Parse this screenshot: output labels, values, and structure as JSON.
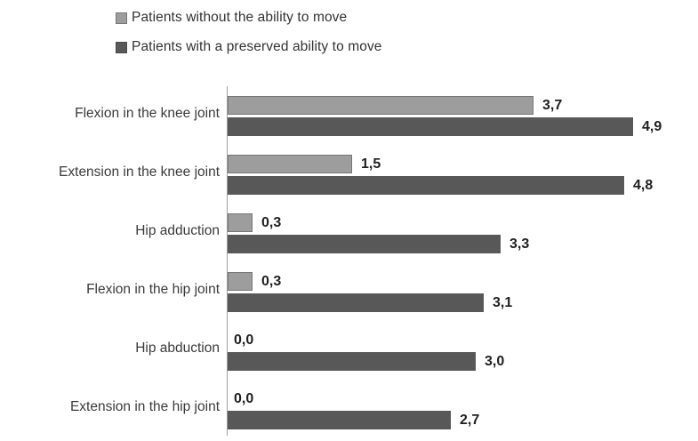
{
  "chart_data": {
    "type": "bar",
    "orientation": "horizontal",
    "title": "",
    "xlabel": "",
    "ylabel": "",
    "xlim": [
      0,
      5.7
    ],
    "grid": false,
    "legend_position": "top",
    "decimal_separator": ",",
    "background_color": "#ffffff",
    "axis_color": "#a0a0a0",
    "categories": [
      "Flexion in the knee joint",
      "Extension in the knee joint",
      "Hip adduction",
      "Flexion in the hip joint",
      "Hip abduction",
      "Extension in the hip joint"
    ],
    "series": [
      {
        "name": "Patients without the ability to move",
        "color": "#9d9d9d",
        "border_color": "#767676",
        "values": [
          3.7,
          1.5,
          0.3,
          0.3,
          0.0,
          0.0
        ],
        "value_labels": [
          "3,7",
          "1,5",
          "0,3",
          "0,3",
          "0,0",
          "0,0"
        ]
      },
      {
        "name": "Patients with a preserved ability to move",
        "color": "#585858",
        "border_color": "#4c4c4c",
        "values": [
          4.9,
          4.8,
          3.3,
          3.1,
          3.0,
          2.7
        ],
        "value_labels": [
          "4,9",
          "4,8",
          "3,3",
          "3,1",
          "3,0",
          "2,7"
        ]
      }
    ]
  }
}
